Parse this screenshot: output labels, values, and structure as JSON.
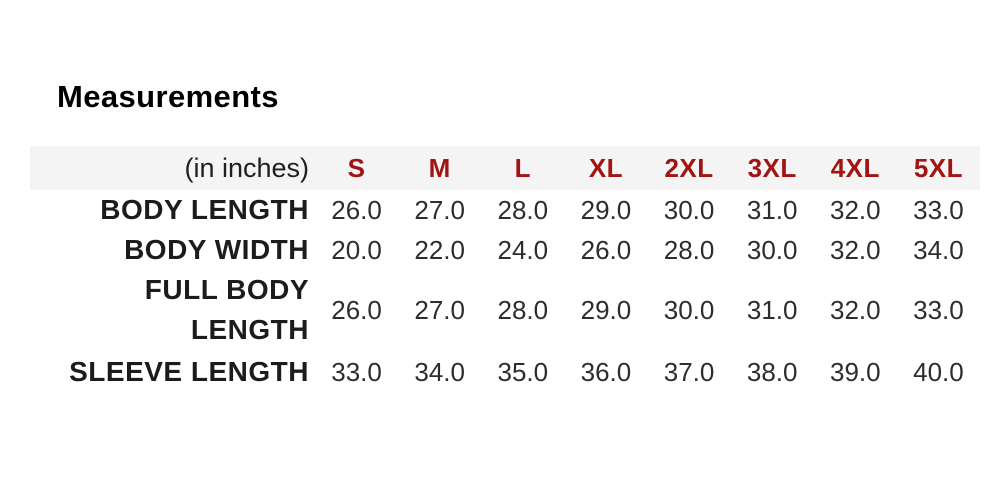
{
  "chart_data": {
    "type": "table",
    "title": "Measurements",
    "unit_label": "(in inches)",
    "columns": [
      "S",
      "M",
      "L",
      "XL",
      "2XL",
      "3XL",
      "4XL",
      "5XL"
    ],
    "rows": [
      {
        "label": "BODY LENGTH",
        "values": [
          "26.0",
          "27.0",
          "28.0",
          "29.0",
          "30.0",
          "31.0",
          "32.0",
          "33.0"
        ]
      },
      {
        "label": "BODY WIDTH",
        "values": [
          "20.0",
          "22.0",
          "24.0",
          "26.0",
          "28.0",
          "30.0",
          "32.0",
          "34.0"
        ]
      },
      {
        "label": "FULL BODY LENGTH",
        "values": [
          "26.0",
          "27.0",
          "28.0",
          "29.0",
          "30.0",
          "31.0",
          "32.0",
          "33.0"
        ]
      },
      {
        "label": "SLEEVE LENGTH",
        "values": [
          "33.0",
          "34.0",
          "35.0",
          "36.0",
          "37.0",
          "38.0",
          "39.0",
          "40.0"
        ]
      }
    ],
    "legend": "none",
    "grid": "off"
  },
  "colors": {
    "size_header_text": "#a01414",
    "header_row_bg": "#f4f4f4",
    "body_text": "#2d2d2d",
    "label_text": "#1c1c1c",
    "page_bg": "#ffffff"
  }
}
